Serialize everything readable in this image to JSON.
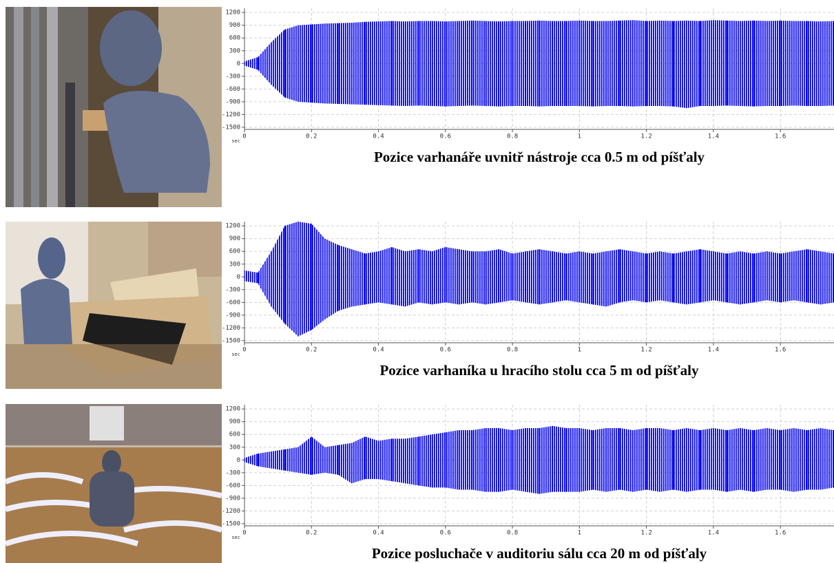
{
  "chart_data": [
    {
      "type": "range",
      "title": "Pozice varhanáře uvnitř nástroje cca 0.5 m od píšťaly",
      "x_label": "sec",
      "color": "#0000ee",
      "grid": true,
      "x": [
        0,
        0.04,
        0.08,
        0.12,
        0.16,
        0.2,
        0.24,
        0.28,
        0.32,
        0.36,
        0.4,
        0.44,
        0.48,
        0.52,
        0.56,
        0.6,
        0.64,
        0.68,
        0.72,
        0.76,
        0.8,
        0.84,
        0.88,
        0.92,
        0.96,
        1,
        1.04,
        1.08,
        1.12,
        1.16,
        1.2,
        1.24,
        1.28,
        1.32,
        1.36,
        1.4,
        1.44,
        1.48,
        1.52,
        1.56,
        1.6,
        1.64,
        1.68,
        1.72,
        1.76
      ],
      "high": [
        50,
        150,
        500,
        800,
        900,
        920,
        940,
        950,
        960,
        980,
        990,
        1000,
        990,
        1000,
        1000,
        990,
        1000,
        1010,
        1000,
        990,
        1000,
        1000,
        1010,
        1000,
        1000,
        1010,
        1000,
        1000,
        1010,
        1020,
        1000,
        1010,
        1000,
        1010,
        1000,
        1020,
        1010,
        1000,
        1010,
        1000,
        1010,
        1000,
        1000,
        990,
        1000
      ],
      "low": [
        -50,
        -150,
        -500,
        -800,
        -900,
        -920,
        -940,
        -950,
        -960,
        -970,
        -980,
        -990,
        -1000,
        -990,
        -1000,
        -1010,
        -1000,
        -990,
        -1000,
        -1010,
        -1000,
        -1000,
        -1010,
        -1000,
        -1000,
        -1000,
        -1010,
        -1000,
        -1000,
        -1010,
        -1000,
        -1000,
        -1010,
        -1050,
        -1000,
        -1000,
        -990,
        -1000,
        -1010,
        -1000,
        -1000,
        -990,
        -1000,
        -1000,
        -990
      ],
      "xlim": [
        0,
        1.76
      ],
      "xticks": [
        0,
        0.2,
        0.4,
        0.6,
        0.8,
        1,
        1.2,
        1.4,
        1.6
      ],
      "ylim": [
        -1550,
        1300
      ],
      "yticks": [
        1200,
        900,
        600,
        300,
        0,
        -300,
        -600,
        -900,
        -1200,
        -1500
      ]
    },
    {
      "type": "range",
      "title": "Pozice varhaníka u hracího stolu cca 5 m od píšťaly",
      "x_label": "sec",
      "color": "#0000ee",
      "grid": true,
      "x": [
        0,
        0.04,
        0.08,
        0.12,
        0.16,
        0.2,
        0.24,
        0.28,
        0.32,
        0.36,
        0.4,
        0.44,
        0.48,
        0.52,
        0.56,
        0.6,
        0.64,
        0.68,
        0.72,
        0.76,
        0.8,
        0.84,
        0.88,
        0.92,
        0.96,
        1,
        1.04,
        1.08,
        1.12,
        1.16,
        1.2,
        1.24,
        1.28,
        1.32,
        1.36,
        1.4,
        1.44,
        1.48,
        1.52,
        1.56,
        1.6,
        1.64,
        1.68,
        1.72,
        1.76
      ],
      "high": [
        150,
        100,
        600,
        1200,
        1300,
        1250,
        900,
        750,
        650,
        550,
        600,
        700,
        600,
        650,
        600,
        700,
        650,
        600,
        600,
        650,
        550,
        600,
        650,
        600,
        550,
        600,
        550,
        600,
        650,
        600,
        550,
        600,
        550,
        600,
        650,
        600,
        550,
        600,
        550,
        600,
        550,
        600,
        650,
        600,
        550
      ],
      "low": [
        -100,
        -150,
        -700,
        -1100,
        -1400,
        -1250,
        -1000,
        -800,
        -700,
        -650,
        -600,
        -650,
        -700,
        -600,
        -650,
        -600,
        -650,
        -600,
        -650,
        -600,
        -550,
        -600,
        -650,
        -600,
        -550,
        -600,
        -650,
        -700,
        -600,
        -550,
        -600,
        -550,
        -600,
        -650,
        -600,
        -550,
        -600,
        -650,
        -600,
        -550,
        -600,
        -550,
        -600,
        -650,
        -600
      ],
      "xlim": [
        0,
        1.76
      ],
      "xticks": [
        0,
        0.2,
        0.4,
        0.6,
        0.8,
        1,
        1.2,
        1.4,
        1.6
      ],
      "ylim": [
        -1550,
        1300
      ],
      "yticks": [
        1200,
        900,
        600,
        300,
        0,
        -300,
        -600,
        -900,
        -1200,
        -1500
      ]
    },
    {
      "type": "range",
      "title": "Pozice posluchače v auditoriu sálu cca 20 m od píšťaly",
      "x_label": "sec",
      "color": "#0000ee",
      "grid": true,
      "x": [
        0,
        0.04,
        0.08,
        0.12,
        0.16,
        0.2,
        0.24,
        0.28,
        0.32,
        0.36,
        0.4,
        0.44,
        0.48,
        0.52,
        0.56,
        0.6,
        0.64,
        0.68,
        0.72,
        0.76,
        0.8,
        0.84,
        0.88,
        0.92,
        0.96,
        1,
        1.04,
        1.08,
        1.12,
        1.16,
        1.2,
        1.24,
        1.28,
        1.32,
        1.36,
        1.4,
        1.44,
        1.48,
        1.52,
        1.56,
        1.6,
        1.64,
        1.68,
        1.72,
        1.76
      ],
      "high": [
        50,
        150,
        200,
        250,
        300,
        550,
        300,
        350,
        400,
        550,
        450,
        500,
        500,
        550,
        600,
        650,
        700,
        700,
        750,
        750,
        700,
        750,
        750,
        800,
        750,
        750,
        700,
        750,
        750,
        700,
        750,
        750,
        700,
        750,
        700,
        750,
        700,
        750,
        700,
        750,
        700,
        750,
        700,
        750,
        700
      ],
      "low": [
        -50,
        -150,
        -200,
        -250,
        -300,
        -350,
        -300,
        -350,
        -550,
        -450,
        -450,
        -500,
        -550,
        -600,
        -650,
        -650,
        -700,
        -700,
        -750,
        -750,
        -700,
        -750,
        -800,
        -750,
        -750,
        -750,
        -700,
        -750,
        -700,
        -750,
        -700,
        -750,
        -700,
        -750,
        -700,
        -700,
        -750,
        -700,
        -750,
        -700,
        -700,
        -750,
        -700,
        -700,
        -650
      ],
      "xlim": [
        0,
        1.76
      ],
      "xticks": [
        0,
        0.2,
        0.4,
        0.6,
        0.8,
        1,
        1.2,
        1.4,
        1.6
      ],
      "ylim": [
        -1550,
        1300
      ],
      "yticks": [
        1200,
        900,
        600,
        300,
        0,
        -300,
        -600,
        -900,
        -1200,
        -1500
      ]
    }
  ]
}
